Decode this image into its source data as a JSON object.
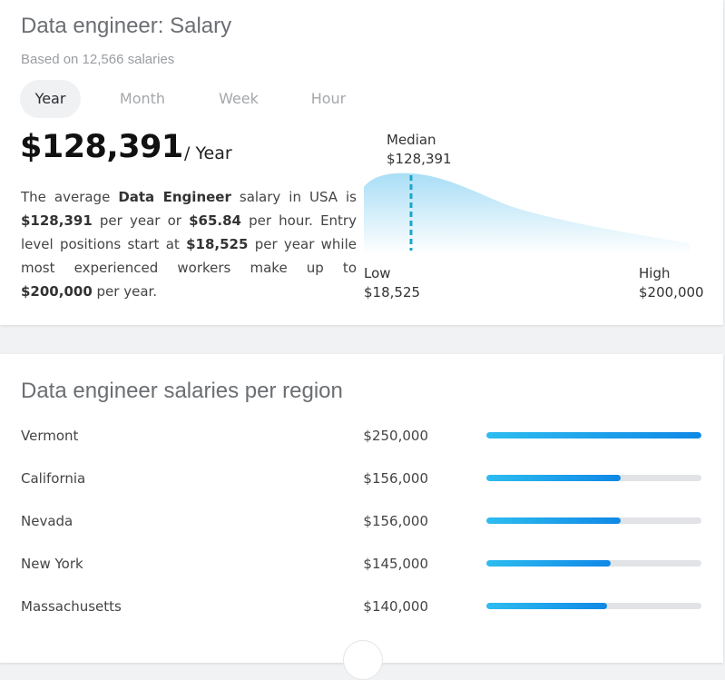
{
  "salary_card": {
    "title": "Data engineer: Salary",
    "subtitle": "Based on 12,566 salaries",
    "tabs": [
      {
        "label": "Year",
        "active": true
      },
      {
        "label": "Month",
        "active": false
      },
      {
        "label": "Week",
        "active": false
      },
      {
        "label": "Hour",
        "active": false
      }
    ],
    "salary": "$128,391",
    "period": "/ Year",
    "description": {
      "t1": "The average ",
      "b1": "Data Engineer",
      "t2": " salary in USA is ",
      "b2": "$128,391",
      "t3": " per year or ",
      "b3": "$65.84",
      "t4": " per hour. Entry level positions start at ",
      "b4": "$18,525",
      "t5": " per year while most experienced workers make up to ",
      "b5": "$200,000",
      "t6": " per year."
    },
    "distribution": {
      "median_label": "Median",
      "median_value": "$128,391",
      "low_label": "Low",
      "low_value": "$18,525",
      "high_label": "High",
      "high_value": "$200,000",
      "colors": {
        "fill_top": "#a9def6",
        "fill_bottom": "#ffffff",
        "median_line": "#1aa6cf"
      }
    }
  },
  "region_card": {
    "title": "Data engineer salaries per region",
    "max_value": 250000,
    "regions": [
      {
        "name": "Vermont",
        "value_label": "$250,000",
        "value": 250000
      },
      {
        "name": "California",
        "value_label": "$156,000",
        "value": 156000
      },
      {
        "name": "Nevada",
        "value_label": "$156,000",
        "value": 156000
      },
      {
        "name": "New York",
        "value_label": "$145,000",
        "value": 145000
      },
      {
        "name": "Massachusetts",
        "value_label": "$140,000",
        "value": 140000
      }
    ],
    "bar_colors": {
      "start": "#2dbdf0",
      "end": "#1088e6",
      "track": "#e1e3e6"
    }
  }
}
